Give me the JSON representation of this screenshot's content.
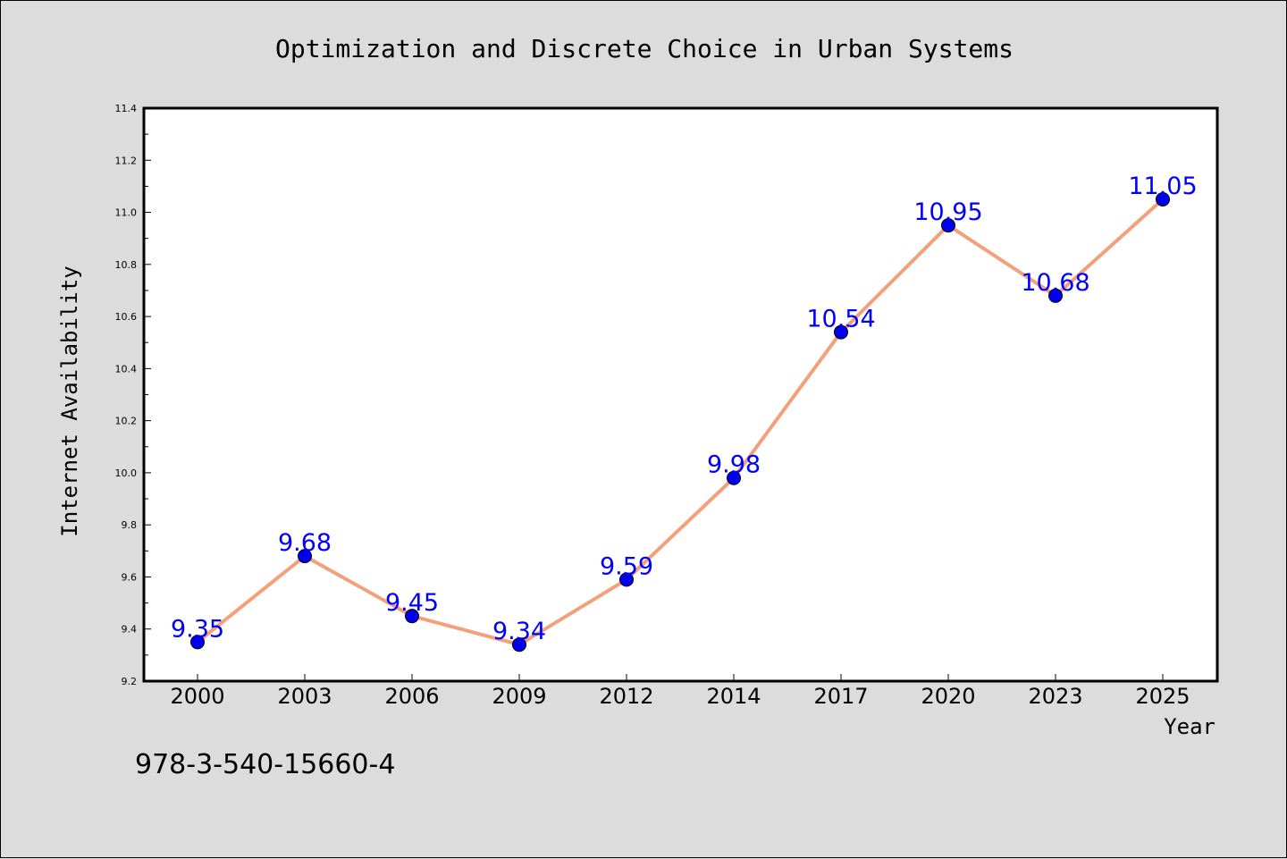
{
  "chart_data": {
    "type": "line",
    "title": "Optimization and Discrete Choice in Urban Systems",
    "xlabel": "Year",
    "ylabel": "Internet Availability",
    "categories": [
      "2000",
      "2003",
      "2006",
      "2009",
      "2012",
      "2014",
      "2017",
      "2020",
      "2023",
      "2025"
    ],
    "values": [
      9.35,
      9.68,
      9.45,
      9.34,
      9.59,
      9.98,
      10.54,
      10.95,
      10.68,
      11.05
    ],
    "value_labels": [
      "9.35",
      "9.68",
      "9.45",
      "9.34",
      "9.59",
      "9.98",
      "10.54",
      "10.95",
      "10.68",
      "11.05"
    ],
    "ylim": [
      9.2,
      11.4
    ],
    "yticks": [
      9.2,
      9.4,
      9.6,
      9.8,
      10.0,
      10.2,
      10.4,
      10.6,
      10.8,
      11.0,
      11.2,
      11.4
    ],
    "ytick_labels": [
      "9.2",
      "9.4",
      "9.6",
      "9.8",
      "10.0",
      "10.2",
      "10.4",
      "10.6",
      "10.8",
      "11.0",
      "11.2",
      "11.4"
    ],
    "grid": false,
    "legend": false,
    "line_color": "#f4a07a",
    "marker_color": "#0000ee",
    "label_color": "#0000ff"
  },
  "annotation": {
    "isbn": "978-3-540-15660-4"
  }
}
